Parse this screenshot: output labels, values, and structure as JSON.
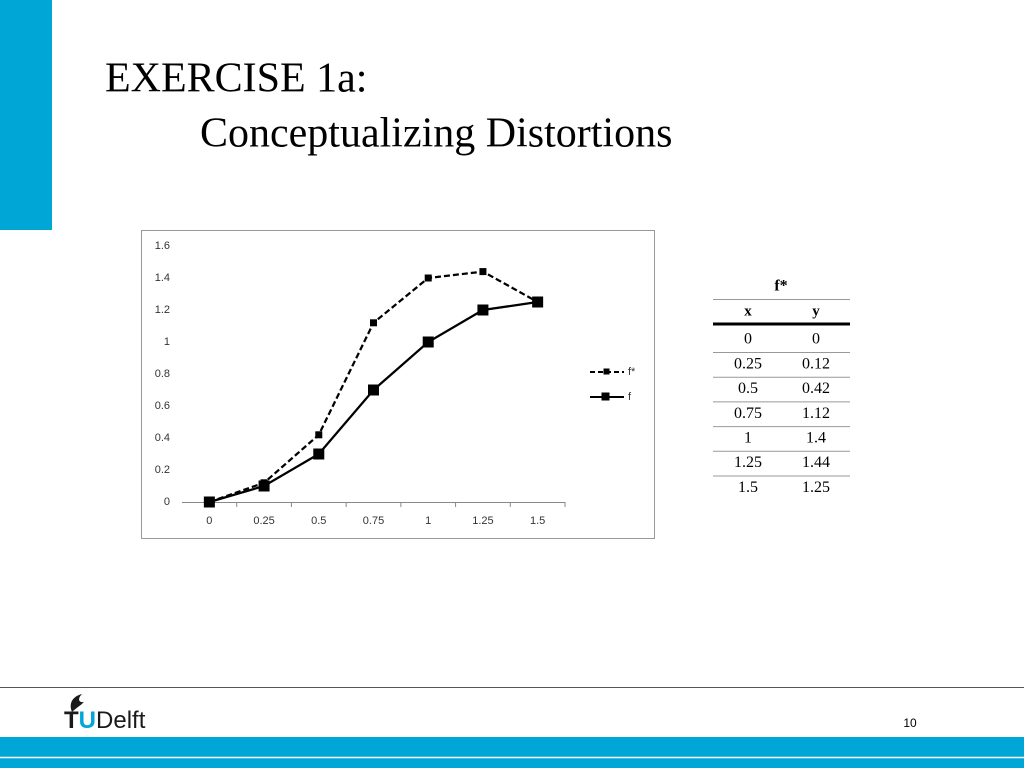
{
  "header": {
    "title_line1": "EXERCISE 1a:",
    "title_line2": "Conceptualizing Distortions"
  },
  "chart_data": {
    "type": "line",
    "categories": [
      "0",
      "0.25",
      "0.5",
      "0.75",
      "1",
      "1.25",
      "1.5"
    ],
    "series": [
      {
        "name": "f*",
        "color": "#000000",
        "line_style": "dashed",
        "values": [
          0,
          0.12,
          0.42,
          1.12,
          1.4,
          1.44,
          1.25
        ]
      },
      {
        "name": "f",
        "color": "#000000",
        "line_style": "solid",
        "values": [
          0,
          0.1,
          0.3,
          0.7,
          1.0,
          1.2,
          1.25
        ]
      }
    ],
    "ylim": [
      0,
      1.6
    ],
    "yticks": [
      0,
      0.2,
      0.4,
      0.6,
      0.8,
      1,
      1.2,
      1.4,
      1.6
    ],
    "grid": false,
    "legend": "right"
  },
  "table": {
    "title": "f*",
    "header": [
      "x",
      "y"
    ],
    "rows": [
      [
        0,
        0
      ],
      [
        0.25,
        0.12
      ],
      [
        0.5,
        0.42
      ],
      [
        0.75,
        1.12
      ],
      [
        1,
        1.4
      ],
      [
        1.25,
        1.44
      ],
      [
        1.5,
        1.25
      ]
    ]
  },
  "footer": {
    "logo_t": "T",
    "logo_u": "U",
    "logo_delft": "Delft",
    "page_number": "10"
  }
}
